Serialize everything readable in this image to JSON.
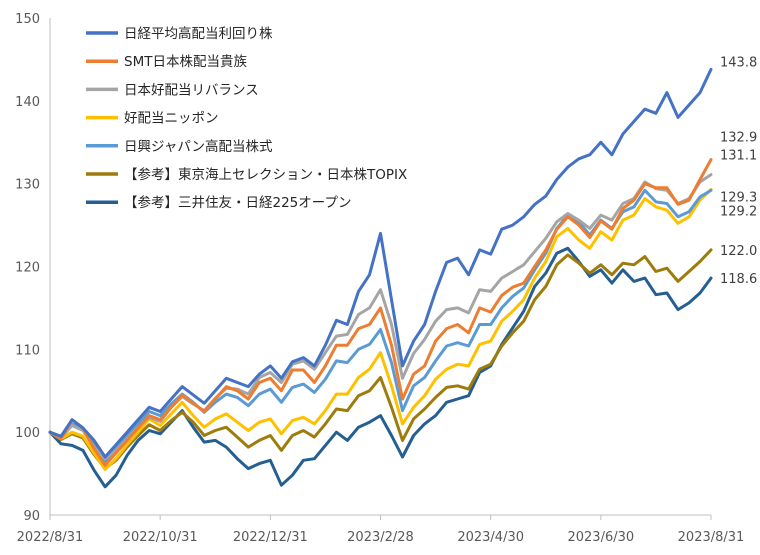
{
  "chart_data": {
    "type": "line",
    "title": "",
    "xlabel": "",
    "ylabel": "",
    "ylim": [
      90,
      150
    ],
    "y_ticks": [
      90,
      100,
      110,
      120,
      130,
      140,
      150
    ],
    "x_tick_labels": [
      "2022/8/31",
      "2022/10/31",
      "2022/12/31",
      "2023/2/28",
      "2023/4/30",
      "2023/6/30",
      "2023/8/31"
    ],
    "grid": false,
    "legend_position": "top-left",
    "series": [
      {
        "name": "日経平均高配当利回り株",
        "color": "#4472c4",
        "end_label": "143.8",
        "values": [
          100,
          99.5,
          101.5,
          100.5,
          99,
          97,
          98.5,
          100,
          101.5,
          103,
          102.5,
          104,
          105.5,
          104.5,
          103.5,
          105,
          106.5,
          106,
          105.5,
          107,
          108,
          106.5,
          108.5,
          109,
          108,
          110.5,
          113.5,
          113,
          117,
          119,
          124,
          116,
          108,
          111,
          113,
          117,
          120.5,
          121,
          119,
          122,
          121.5,
          124.5,
          125,
          126,
          127.5,
          128.5,
          130.5,
          132,
          133,
          133.5,
          135,
          133.5,
          136,
          137.5,
          139,
          138.5,
          141,
          138,
          139.5,
          141,
          143.8
        ]
      },
      {
        "name": "SMT日本株配当貴族",
        "color": "#ed7d31",
        "end_label": "132.9",
        "values": [
          100,
          99.2,
          101.5,
          100.5,
          98,
          96,
          97.5,
          99,
          100.5,
          102,
          101.5,
          103,
          104.5,
          103.5,
          102.5,
          104,
          105.5,
          105,
          104,
          106,
          106.5,
          105,
          107.5,
          107.5,
          106,
          108,
          110.5,
          110.5,
          112.5,
          113,
          115,
          110.5,
          104,
          107,
          108,
          111,
          112.5,
          113,
          112,
          115,
          114.5,
          116.5,
          117.5,
          118,
          120,
          122,
          124.5,
          126,
          125,
          123.5,
          125.5,
          124.5,
          127,
          128,
          130,
          129.5,
          129.5,
          127.5,
          128,
          130.5,
          132.9
        ]
      },
      {
        "name": "日本好配当リバランス",
        "color": "#a5a5a5",
        "end_label": "131.1",
        "values": [
          100,
          99.3,
          100.8,
          100.2,
          98.2,
          96.8,
          97.8,
          99.2,
          100.6,
          101.8,
          101.3,
          103,
          104.3,
          103.4,
          102.6,
          104.1,
          105.3,
          105.2,
          104.6,
          106.6,
          107.2,
          106,
          108.2,
          108.6,
          107.6,
          109.6,
          111.6,
          111.8,
          114.2,
          115,
          117.2,
          113,
          106.5,
          109.5,
          111.2,
          113.4,
          114.8,
          115,
          114.4,
          117.2,
          117,
          118.6,
          119.4,
          120.2,
          121.8,
          123.4,
          125.4,
          126.4,
          125.6,
          124.6,
          126.2,
          125.6,
          127.6,
          128.2,
          130.2,
          129.4,
          129.2,
          127.6,
          128.2,
          130.2,
          131.1
        ]
      },
      {
        "name": "好配当ニッポン",
        "color": "#ffc000",
        "end_label": "129.3",
        "values": [
          100,
          99.2,
          100,
          99.5,
          97.5,
          95.5,
          96.8,
          98.5,
          100,
          101.6,
          100.8,
          102.2,
          103.6,
          102,
          100.6,
          101.6,
          102.2,
          101.2,
          100.2,
          101.2,
          101.6,
          99.8,
          101.4,
          101.8,
          101,
          102.6,
          104.6,
          104.6,
          106.6,
          107.6,
          109.6,
          105.6,
          101,
          103,
          104.4,
          106.4,
          107.6,
          108.2,
          108,
          110.6,
          111,
          113.4,
          114.6,
          116,
          118.6,
          120.6,
          123.6,
          124.6,
          123.2,
          122.2,
          124.2,
          123.2,
          125.6,
          126.2,
          128.2,
          127.2,
          126.8,
          125.2,
          126,
          128,
          129.3
        ]
      },
      {
        "name": "日興ジャパン高配当株式",
        "color": "#5b9bd5",
        "end_label": "129.2",
        "values": [
          100,
          99.4,
          101,
          100.3,
          98.5,
          96.5,
          98,
          99.6,
          101,
          102.5,
          102,
          103.4,
          104.6,
          103.6,
          102.4,
          103.6,
          104.6,
          104.2,
          103.2,
          104.6,
          105.2,
          103.6,
          105.4,
          105.8,
          104.8,
          106.4,
          108.6,
          108.4,
          110,
          110.6,
          112.4,
          108.4,
          102.6,
          105.6,
          106.6,
          108.6,
          110.4,
          110.8,
          110.4,
          113,
          113,
          115,
          116.4,
          117.4,
          119.6,
          121.6,
          124.6,
          126.2,
          125.4,
          123.8,
          125.6,
          124.6,
          126.6,
          127.2,
          129.2,
          127.8,
          127.6,
          126,
          126.6,
          128.4,
          129.2
        ]
      },
      {
        "name": "【参考】東京海上セレクション・日本株TOPIX",
        "color": "#9e7c0c",
        "end_label": "122.0",
        "values": [
          100,
          99.1,
          99.8,
          99.3,
          97.3,
          95.6,
          96.6,
          98.2,
          99.6,
          100.9,
          100.2,
          101.4,
          102.4,
          101.2,
          99.6,
          100.2,
          100.6,
          99.4,
          98.2,
          99,
          99.6,
          97.8,
          99.6,
          100.2,
          99.4,
          101,
          102.8,
          102.6,
          104.4,
          105,
          106.6,
          103,
          99,
          101.6,
          102.8,
          104.2,
          105.4,
          105.6,
          105.2,
          107.6,
          108.2,
          110.4,
          112,
          113.4,
          116,
          117.6,
          120.2,
          121.4,
          120.4,
          119.2,
          120.2,
          119,
          120.4,
          120.2,
          121.2,
          119.4,
          119.8,
          118.2,
          119.4,
          120.6,
          122
        ]
      },
      {
        "name": "【参考】三井住友・日経225オープン",
        "color": "#255e91",
        "end_label": "118.6",
        "values": [
          100,
          98.6,
          98.4,
          97.8,
          95.4,
          93.4,
          94.8,
          97.2,
          99,
          100.2,
          99.8,
          101.2,
          102.6,
          100.6,
          98.8,
          99,
          98.2,
          96.8,
          95.6,
          96.2,
          96.6,
          93.6,
          94.8,
          96.6,
          96.8,
          98.4,
          100,
          99,
          100.6,
          101.2,
          102,
          99.6,
          97,
          99.6,
          101,
          102,
          103.6,
          104,
          104.4,
          107.2,
          108,
          110.6,
          112.6,
          114.6,
          117.6,
          119.2,
          121.6,
          122.2,
          120.6,
          118.8,
          119.6,
          118,
          119.6,
          118.2,
          118.6,
          116.6,
          116.8,
          114.8,
          115.6,
          116.8,
          118.6
        ]
      }
    ]
  }
}
